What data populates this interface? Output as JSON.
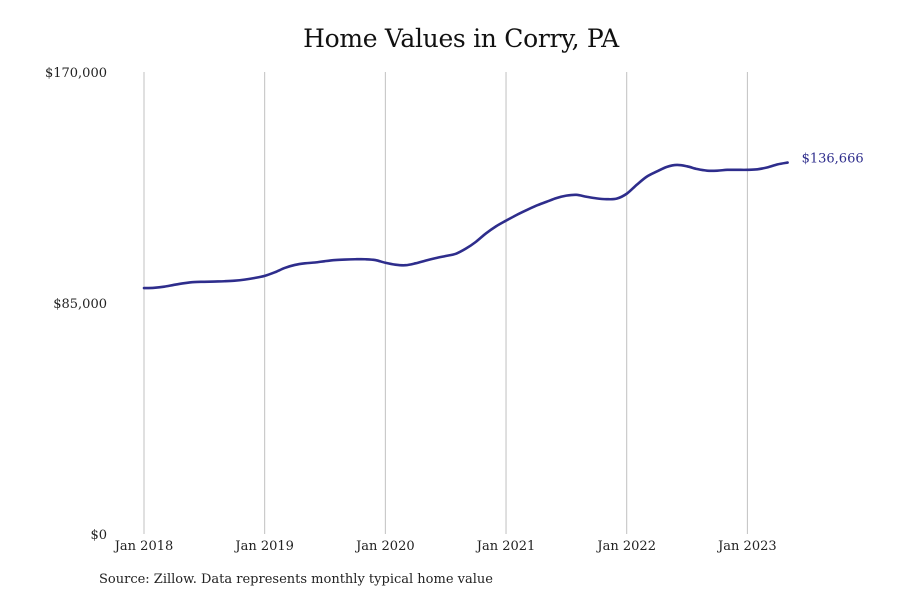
{
  "chart_data": {
    "type": "line",
    "title": "Home Values in Corry, PA",
    "xlabel": "",
    "ylabel": "",
    "ylim": [
      0,
      170000
    ],
    "y_ticks": [
      0,
      85000,
      170000
    ],
    "y_tick_labels": [
      "$0",
      "$85,000",
      "$170,000"
    ],
    "x_range": [
      "2018-01",
      "2023-12"
    ],
    "x_ticks": [
      "2018-01",
      "2019-01",
      "2020-01",
      "2021-01",
      "2022-01",
      "2023-01"
    ],
    "x_tick_labels": [
      "Jan 2018",
      "Jan 2019",
      "Jan 2020",
      "Jan 2021",
      "Jan 2022",
      "Jan 2023"
    ],
    "grid": "vertical",
    "line_color": "#2e2d8c",
    "grid_color": "#c0c0c0",
    "end_label": "$136,666",
    "series": [
      {
        "x": [
          "2018-01",
          "2018-02",
          "2018-03",
          "2018-04",
          "2018-05",
          "2018-06",
          "2018-07",
          "2018-08",
          "2018-09",
          "2018-10",
          "2018-11",
          "2018-12",
          "2019-01",
          "2019-02",
          "2019-03",
          "2019-04",
          "2019-05",
          "2019-06",
          "2019-07",
          "2019-08",
          "2019-09",
          "2019-10",
          "2019-11",
          "2019-12",
          "2020-01",
          "2020-02",
          "2020-03",
          "2020-04",
          "2020-05",
          "2020-06",
          "2020-07",
          "2020-08",
          "2020-09",
          "2020-10",
          "2020-11",
          "2020-12",
          "2021-01",
          "2021-02",
          "2021-03",
          "2021-04",
          "2021-05",
          "2021-06",
          "2021-07",
          "2021-08",
          "2021-09",
          "2021-10",
          "2021-11",
          "2021-12",
          "2022-01",
          "2022-02",
          "2022-03",
          "2022-04",
          "2022-05",
          "2022-06",
          "2022-07",
          "2022-08",
          "2022-09",
          "2022-10",
          "2022-11",
          "2022-12",
          "2023-01",
          "2023-02",
          "2023-03",
          "2023-04",
          "2023-05"
        ],
        "values": [
          90500,
          90600,
          91000,
          91700,
          92300,
          92700,
          92800,
          92900,
          93000,
          93200,
          93600,
          94200,
          95000,
          96300,
          97900,
          99000,
          99600,
          99900,
          100400,
          100800,
          101000,
          101100,
          101100,
          100800,
          99800,
          99100,
          98900,
          99600,
          100600,
          101500,
          102300,
          103100,
          105000,
          107500,
          110600,
          113200,
          115300,
          117300,
          119100,
          120800,
          122200,
          123600,
          124500,
          124800,
          124100,
          123500,
          123200,
          123400,
          125200,
          128500,
          131500,
          133400,
          135100,
          135800,
          135300,
          134300,
          133700,
          133700,
          134000,
          134000,
          134000,
          134200,
          134900,
          136000,
          136666
        ]
      }
    ]
  },
  "source_note": "Source: Zillow. Data represents monthly typical home value"
}
